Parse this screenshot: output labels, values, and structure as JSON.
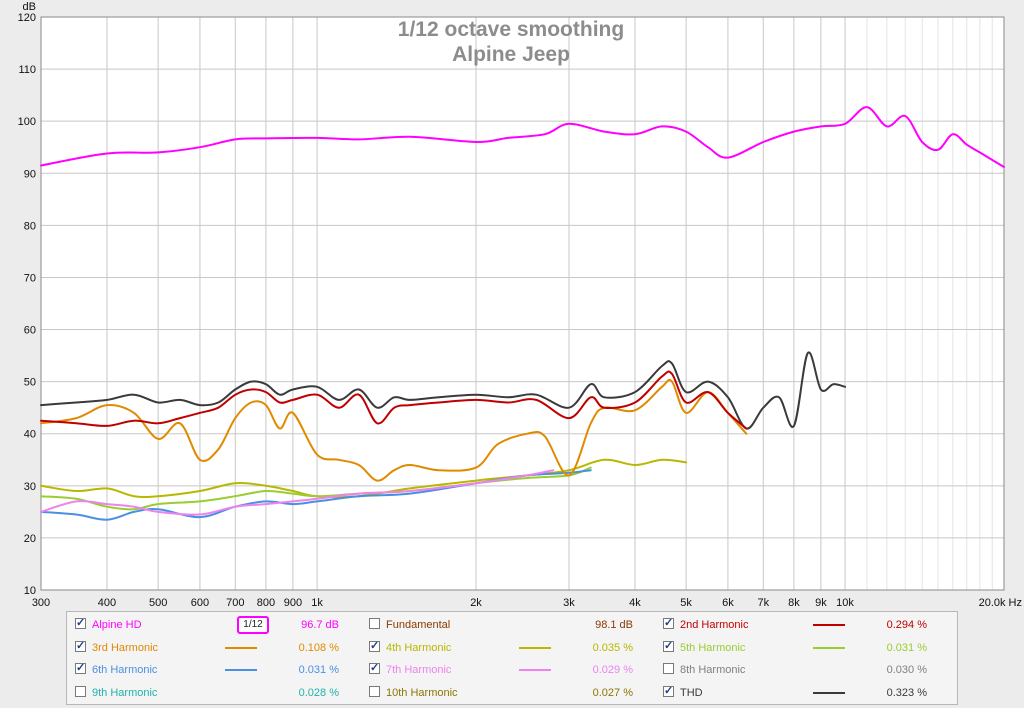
{
  "chart_data": {
    "type": "line",
    "title": "1/12 octave smoothing",
    "subtitle": "Alpine Jeep",
    "ylabel": "dB",
    "xscale": "log",
    "xlim": [
      300,
      20000
    ],
    "ylim": [
      10,
      120
    ],
    "grid": true,
    "y_ticks": [
      "10",
      "20",
      "30",
      "40",
      "50",
      "60",
      "70",
      "80",
      "90",
      "100",
      "110",
      "120"
    ],
    "x_ticks": [
      {
        "v": 300,
        "label": "300"
      },
      {
        "v": 400,
        "label": "400"
      },
      {
        "v": 500,
        "label": "500"
      },
      {
        "v": 600,
        "label": "600"
      },
      {
        "v": 700,
        "label": "700"
      },
      {
        "v": 800,
        "label": "800"
      },
      {
        "v": 900,
        "label": "900"
      },
      {
        "v": 1000,
        "label": "1k"
      },
      {
        "v": 2000,
        "label": "2k"
      },
      {
        "v": 3000,
        "label": "3k"
      },
      {
        "v": 4000,
        "label": "4k"
      },
      {
        "v": 5000,
        "label": "5k"
      },
      {
        "v": 6000,
        "label": "6k"
      },
      {
        "v": 7000,
        "label": "7k"
      },
      {
        "v": 8000,
        "label": "8k"
      },
      {
        "v": 9000,
        "label": "9k"
      },
      {
        "v": 10000,
        "label": "10k"
      },
      {
        "v": 20000,
        "label": "20.0k Hz"
      }
    ],
    "series": [
      {
        "name": "Alpine HD",
        "color": "#ff00ff",
        "width": 2,
        "x": [
          300,
          400,
          500,
          600,
          700,
          800,
          1000,
          1200,
          1500,
          2000,
          2300,
          2700,
          3000,
          3500,
          4000,
          4500,
          5000,
          5500,
          6000,
          7000,
          8000,
          9000,
          10000,
          11000,
          12000,
          13000,
          14000,
          15000,
          16000,
          17000,
          18000,
          20000
        ],
        "y": [
          91.5,
          93.8,
          94,
          95,
          96.5,
          96.7,
          96.8,
          96.5,
          97,
          96,
          96.8,
          97.5,
          99.5,
          98,
          97.5,
          99,
          98,
          95,
          93,
          96,
          98,
          99,
          99.5,
          102.7,
          99,
          101,
          96,
          94.5,
          97.5,
          95.5,
          94,
          91.2
        ]
      },
      {
        "name": "2nd Harmonic",
        "color": "#c00000",
        "width": 2,
        "x": [
          300,
          350,
          400,
          450,
          500,
          550,
          600,
          650,
          700,
          750,
          800,
          850,
          900,
          1000,
          1100,
          1200,
          1300,
          1400,
          1500,
          1700,
          2000,
          2300,
          2600,
          3000,
          3300,
          3500,
          4000,
          4500,
          4700,
          5000,
          5500,
          6000,
          6500
        ],
        "y": [
          42.5,
          42,
          41.5,
          42.5,
          42,
          43,
          44,
          45,
          47.5,
          48.5,
          48,
          46,
          46.5,
          47.5,
          45,
          47.5,
          42,
          45,
          45.5,
          46,
          46.5,
          46,
          46.5,
          43,
          47,
          45,
          46,
          51,
          51.5,
          46,
          48,
          44,
          41
        ]
      },
      {
        "name": "3rd Harmonic",
        "color": "#e08a00",
        "width": 2,
        "x": [
          300,
          350,
          400,
          450,
          500,
          550,
          600,
          650,
          700,
          750,
          800,
          850,
          900,
          1000,
          1100,
          1200,
          1300,
          1400,
          1500,
          1700,
          2000,
          2200,
          2500,
          2700,
          3000,
          3300,
          3500,
          4000,
          4500,
          4700,
          5000,
          5500,
          6000,
          6500
        ],
        "y": [
          42,
          43,
          45.5,
          44,
          39,
          42,
          35,
          37,
          43,
          46,
          45.5,
          41,
          44,
          36,
          35,
          34,
          31,
          33,
          34,
          33,
          33.5,
          38,
          40,
          39.5,
          32,
          42,
          45,
          44.5,
          49,
          50,
          44,
          48,
          44,
          40
        ]
      },
      {
        "name": "4th Harmonic",
        "color": "#b8b800",
        "width": 2,
        "x": [
          300,
          350,
          400,
          450,
          500,
          600,
          700,
          800,
          900,
          1000,
          1200,
          1500,
          2000,
          2500,
          3000,
          3500,
          4000,
          4500,
          5000
        ],
        "y": [
          30,
          29,
          29.5,
          28,
          28,
          29,
          30.5,
          30,
          29,
          28,
          28,
          29.5,
          31,
          32,
          33,
          35,
          34,
          35,
          34.5
        ]
      },
      {
        "name": "5th Harmonic",
        "color": "#9acd32",
        "width": 2,
        "x": [
          300,
          350,
          400,
          450,
          500,
          600,
          700,
          800,
          900,
          1000,
          1200,
          1500,
          2000,
          2500,
          3000,
          3300
        ],
        "y": [
          28,
          27.5,
          26,
          25.5,
          26.5,
          27,
          28,
          29,
          28.5,
          28,
          28.5,
          29,
          30.5,
          31.5,
          32,
          33.5
        ]
      },
      {
        "name": "6th Harmonic",
        "color": "#4a90e2",
        "width": 2,
        "x": [
          300,
          350,
          400,
          450,
          500,
          600,
          700,
          800,
          900,
          1000,
          1200,
          1500,
          2000,
          2500,
          3000,
          3300
        ],
        "y": [
          25,
          24.5,
          23.5,
          25,
          25.5,
          24,
          26,
          27,
          26.5,
          27,
          28,
          28.5,
          30.5,
          32,
          32.5,
          33
        ]
      },
      {
        "name": "7th Harmonic",
        "color": "#ee82ee",
        "width": 2,
        "x": [
          300,
          350,
          400,
          450,
          500,
          600,
          700,
          800,
          900,
          1000,
          1200,
          1500,
          2000,
          2500,
          2800
        ],
        "y": [
          25,
          27,
          26.5,
          26,
          25,
          24.5,
          26,
          26.5,
          27,
          27.5,
          28.5,
          29,
          30.5,
          32,
          33
        ]
      },
      {
        "name": "THD",
        "color": "#3a3a3a",
        "width": 2,
        "x": [
          300,
          350,
          400,
          450,
          500,
          550,
          600,
          650,
          700,
          750,
          800,
          850,
          900,
          1000,
          1100,
          1200,
          1300,
          1400,
          1500,
          1700,
          2000,
          2300,
          2600,
          3000,
          3300,
          3500,
          4000,
          4500,
          4700,
          5000,
          5500,
          6000,
          6500,
          7000,
          7500,
          8000,
          8500,
          9000,
          9500,
          10000
        ],
        "y": [
          45.5,
          46,
          46.5,
          47.5,
          46,
          46.5,
          45.5,
          46,
          48.5,
          50,
          49.5,
          47.5,
          48.5,
          49,
          46.5,
          48.5,
          45,
          47,
          46.5,
          47,
          47.5,
          47,
          47.5,
          45,
          49.5,
          47,
          48,
          53,
          53.5,
          48,
          50,
          47,
          41,
          45,
          47,
          41.5,
          55.5,
          48.5,
          49.5,
          49
        ]
      }
    ]
  },
  "legend": {
    "rows": [
      [
        {
          "label": "Alpine HD",
          "checked": true,
          "color": "#ff00ff",
          "value": "96.7 dB",
          "smoothing": "1/12",
          "swatch": false
        },
        {
          "label": "Fundamental",
          "checked": false,
          "color": "#8b3a00",
          "value": "98.1 dB",
          "swatch": false
        },
        {
          "label": "2nd Harmonic",
          "checked": true,
          "color": "#c00000",
          "value": "0.294 %",
          "swatch": true
        }
      ],
      [
        {
          "label": "3rd Harmonic",
          "checked": true,
          "color": "#e08a00",
          "value": "0.108 %",
          "swatch": true
        },
        {
          "label": "4th Harmonic",
          "checked": true,
          "color": "#b8b800",
          "value": "0.035 %",
          "swatch": true
        },
        {
          "label": "5th Harmonic",
          "checked": true,
          "color": "#9acd32",
          "value": "0.031 %",
          "swatch": true
        }
      ],
      [
        {
          "label": "6th Harmonic",
          "checked": true,
          "color": "#4a90e2",
          "value": "0.031 %",
          "swatch": true
        },
        {
          "label": "7th Harmonic",
          "checked": true,
          "color": "#ee82ee",
          "value": "0.029 %",
          "swatch": true
        },
        {
          "label": "8th Harmonic",
          "checked": false,
          "color": "#808080",
          "value": "0.030 %",
          "swatch": false
        }
      ],
      [
        {
          "label": "9th Harmonic",
          "checked": false,
          "color": "#20b2aa",
          "value": "0.028 %",
          "swatch": false
        },
        {
          "label": "10th Harmonic",
          "checked": false,
          "color": "#8b7500",
          "value": "0.027 %",
          "swatch": false
        },
        {
          "label": "THD",
          "checked": true,
          "color": "#3a3a3a",
          "value": "0.323 %",
          "swatch": true
        }
      ]
    ]
  }
}
